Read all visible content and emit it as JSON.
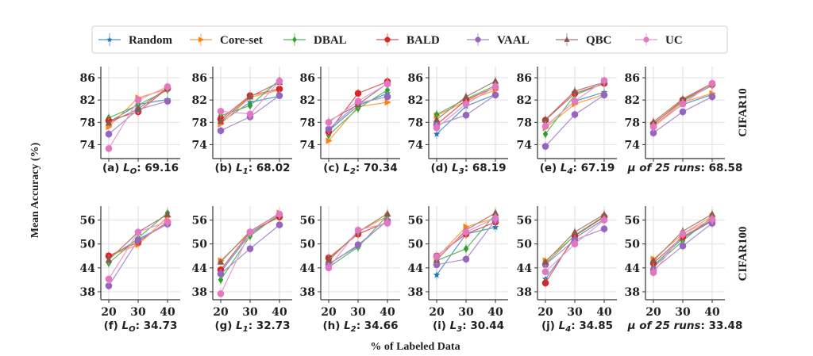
{
  "chart_data": {
    "type": "line",
    "xlabel": "% of Labeled Data",
    "ylabel": "Mean Accuracy (%)",
    "x": [
      20,
      30,
      40
    ],
    "x_tick_labels": [
      "20",
      "30",
      "40"
    ],
    "legend": {
      "placement": "top-center",
      "entries": [
        {
          "name": "Random",
          "color": "#1f77b4",
          "marker": "star"
        },
        {
          "name": "Core-set",
          "color": "#ff7f0e",
          "marker": "triangle-right"
        },
        {
          "name": "DBAL",
          "color": "#2ca02c",
          "marker": "diamond"
        },
        {
          "name": "BALD",
          "color": "#d62728",
          "marker": "circle"
        },
        {
          "name": "VAAL",
          "color": "#9467bd",
          "marker": "circle"
        },
        {
          "name": "QBC",
          "color": "#8c564b",
          "marker": "triangle-up"
        },
        {
          "name": "UC",
          "color": "#e377c2",
          "marker": "circle"
        }
      ]
    },
    "rows": [
      {
        "dataset": "CIFAR10",
        "ylim": [
          71.5,
          88
        ],
        "y_ticks": [
          74,
          78,
          82,
          86
        ],
        "panels": [
          {
            "caption_prefix": "(a) ",
            "caption_var": "L",
            "caption_sub": "O",
            "caption_value": ": 69.16",
            "series": {
              "Random": [
                78.0,
                81.2,
                82.1
              ],
              "Core-set": [
                77.2,
                82.4,
                84.0
              ],
              "DBAL": [
                78.8,
                81.1,
                83.8
              ],
              "BALD": [
                78.3,
                79.9,
                84.1
              ],
              "VAAL": [
                75.9,
                80.3,
                81.8
              ],
              "QBC": [
                77.9,
                80.4,
                84.2
              ],
              "UC": [
                73.3,
                82.0,
                84.4
              ]
            }
          },
          {
            "caption_prefix": "(b) ",
            "caption_var": "L",
            "caption_sub": "1",
            "caption_value": ": 68.02",
            "series": {
              "Random": [
                78.0,
                81.6,
                82.7
              ],
              "Core-set": [
                77.7,
                82.5,
                83.8
              ],
              "DBAL": [
                79.2,
                81.0,
                85.6
              ],
              "BALD": [
                78.6,
                82.8,
                84.0
              ],
              "VAAL": [
                76.5,
                79.0,
                82.8
              ],
              "QBC": [
                78.2,
                82.6,
                85.2
              ],
              "UC": [
                80.0,
                79.5,
                85.4
              ]
            }
          },
          {
            "caption_prefix": "(c) ",
            "caption_var": "L",
            "caption_sub": "2",
            "caption_value": ": 70.34",
            "series": {
              "Random": [
                76.5,
                81.0,
                83.2
              ],
              "Core-set": [
                74.7,
                80.8,
                81.6
              ],
              "DBAL": [
                75.7,
                80.5,
                83.8
              ],
              "BALD": [
                76.3,
                83.2,
                85.3
              ],
              "VAAL": [
                76.8,
                81.4,
                82.6
              ],
              "QBC": [
                78.2,
                81.2,
                85.0
              ],
              "UC": [
                78.0,
                81.8,
                84.9
              ]
            }
          },
          {
            "caption_prefix": "(d) ",
            "caption_var": "L",
            "caption_sub": "3",
            "caption_value": ": 68.19",
            "series": {
              "Random": [
                75.9,
                80.9,
                83.0
              ],
              "Core-set": [
                79.2,
                81.8,
                83.8
              ],
              "DBAL": [
                79.4,
                82.2,
                84.6
              ],
              "BALD": [
                77.6,
                82.0,
                84.3
              ],
              "VAAL": [
                77.5,
                79.3,
                82.9
              ],
              "QBC": [
                78.5,
                82.6,
                85.4
              ],
              "UC": [
                77.0,
                81.3,
                84.4
              ]
            }
          },
          {
            "caption_prefix": "(e) ",
            "caption_var": "L",
            "caption_sub": "4",
            "caption_value": ": 67.19",
            "series": {
              "Random": [
                77.3,
                81.8,
                83.4
              ],
              "Core-set": [
                77.0,
                81.3,
                83.0
              ],
              "DBAL": [
                75.9,
                82.9,
                85.0
              ],
              "BALD": [
                78.4,
                83.2,
                85.0
              ],
              "VAAL": [
                73.7,
                79.4,
                82.9
              ],
              "QBC": [
                78.5,
                83.6,
                85.2
              ],
              "UC": [
                77.3,
                81.8,
                85.5
              ]
            }
          },
          {
            "caption_prefix": "μ of 25 runs",
            "caption_var": "",
            "caption_sub": "",
            "caption_value": ": 68.58",
            "series": {
              "Random": [
                77.5,
                81.2,
                83.0
              ],
              "Core-set": [
                77.4,
                81.6,
                83.2
              ],
              "DBAL": [
                77.8,
                81.8,
                84.6
              ],
              "BALD": [
                77.7,
                82.0,
                84.8
              ],
              "VAAL": [
                76.1,
                79.9,
                82.6
              ],
              "QBC": [
                78.1,
                82.2,
                85.0
              ],
              "UC": [
                77.2,
                81.3,
                85.0
              ]
            }
          }
        ]
      },
      {
        "dataset": "CIFAR100",
        "ylim": [
          36,
          59.5
        ],
        "y_ticks": [
          38,
          44,
          50,
          56
        ],
        "panels": [
          {
            "caption_prefix": "(f) ",
            "caption_var": "L",
            "caption_sub": "O",
            "caption_value": ": 34.73",
            "series": {
              "Random": [
                46.5,
                51.2,
                55.0
              ],
              "Core-set": [
                47.0,
                49.8,
                56.8
              ],
              "DBAL": [
                45.2,
                51.5,
                57.8
              ],
              "BALD": [
                47.0,
                50.5,
                55.5
              ],
              "VAAL": [
                39.5,
                51.0,
                55.0
              ],
              "QBC": [
                46.0,
                53.0,
                57.4
              ],
              "UC": [
                41.2,
                53.0,
                55.6
              ]
            }
          },
          {
            "caption_prefix": "(g) ",
            "caption_var": "L",
            "caption_sub": "1",
            "caption_value": ": 32.73",
            "series": {
              "Random": [
                43.0,
                52.5,
                57.2
              ],
              "Core-set": [
                45.8,
                52.8,
                57.8
              ],
              "DBAL": [
                41.0,
                52.0,
                57.5
              ],
              "BALD": [
                43.5,
                53.0,
                56.8
              ],
              "VAAL": [
                42.5,
                48.8,
                54.8
              ],
              "QBC": [
                45.5,
                53.2,
                57.6
              ],
              "UC": [
                37.5,
                53.0,
                57.5
              ]
            }
          },
          {
            "caption_prefix": "(h) ",
            "caption_var": "L",
            "caption_sub": "2",
            "caption_value": ": 34.66",
            "series": {
              "Random": [
                45.0,
                49.5,
                56.0
              ],
              "Core-set": [
                45.8,
                53.0,
                57.0
              ],
              "DBAL": [
                44.2,
                49.2,
                57.2
              ],
              "BALD": [
                46.5,
                52.5,
                55.5
              ],
              "VAAL": [
                44.8,
                49.8,
                55.8
              ],
              "QBC": [
                46.0,
                53.0,
                57.6
              ],
              "UC": [
                44.0,
                53.5,
                55.2
              ]
            }
          },
          {
            "caption_prefix": "(i) ",
            "caption_var": "L",
            "caption_sub": "3",
            "caption_value": ": 30.44",
            "series": {
              "Random": [
                42.2,
                52.5,
                54.2
              ],
              "Core-set": [
                46.5,
                54.3,
                56.5
              ],
              "DBAL": [
                45.8,
                48.8,
                57.5
              ],
              "BALD": [
                47.0,
                52.5,
                55.5
              ],
              "VAAL": [
                44.8,
                46.2,
                56.0
              ],
              "QBC": [
                46.0,
                53.5,
                57.8
              ],
              "UC": [
                46.8,
                53.0,
                56.5
              ]
            }
          },
          {
            "caption_prefix": "(j) ",
            "caption_var": "L",
            "caption_sub": "4",
            "caption_value": ": 34.85",
            "series": {
              "Random": [
                41.2,
                51.5,
                56.2
              ],
              "Core-set": [
                45.8,
                52.0,
                56.8
              ],
              "DBAL": [
                45.0,
                52.2,
                57.0
              ],
              "BALD": [
                40.2,
                52.0,
                56.8
              ],
              "VAAL": [
                44.8,
                51.0,
                53.8
              ],
              "QBC": [
                45.5,
                53.0,
                57.4
              ],
              "UC": [
                43.0,
                50.0,
                56.0
              ]
            }
          },
          {
            "caption_prefix": "μ of 25 runs",
            "caption_var": "",
            "caption_sub": "",
            "caption_value": ": 33.48",
            "series": {
              "Random": [
                44.5,
                51.5,
                55.8
              ],
              "Core-set": [
                46.2,
                52.5,
                57.0
              ],
              "DBAL": [
                44.2,
                50.8,
                56.8
              ],
              "BALD": [
                45.2,
                51.8,
                56.0
              ],
              "VAAL": [
                43.5,
                49.5,
                55.2
              ],
              "QBC": [
                45.8,
                53.2,
                57.5
              ],
              "UC": [
                42.8,
                52.5,
                56.2
              ]
            }
          }
        ]
      }
    ]
  }
}
